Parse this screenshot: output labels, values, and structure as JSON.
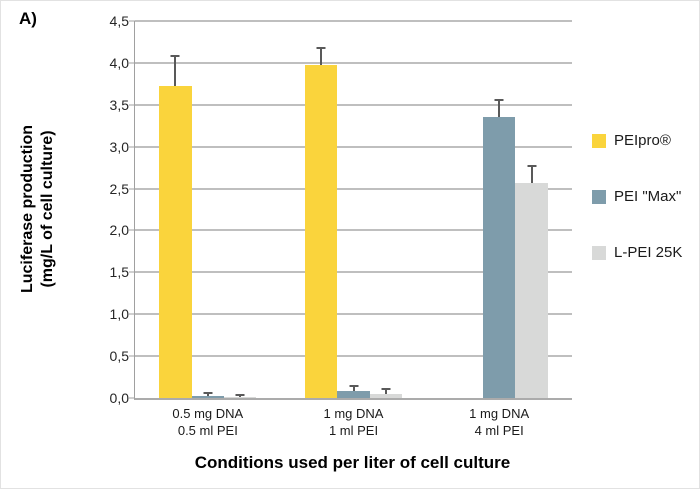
{
  "panel_label": "A)",
  "chart_data": {
    "type": "bar",
    "title": "",
    "xlabel": "Conditions used per liter of cell culture",
    "ylabel_lines": [
      "Luciferase production",
      "(mg/L of cell culture)"
    ],
    "ylim": [
      0,
      4.5
    ],
    "ytick_step": 0.5,
    "ytick_labels": [
      "0,0",
      "0,5",
      "1,0",
      "1,5",
      "2,0",
      "2,5",
      "3,0",
      "3,5",
      "4,0",
      "4,5"
    ],
    "grid": true,
    "legend_position": "right",
    "categories": [
      [
        "0.5 mg DNA",
        "0.5 ml PEI"
      ],
      [
        "1 mg DNA",
        "1 ml PEI"
      ],
      [
        "1 mg DNA",
        "4 ml PEI"
      ]
    ],
    "series": [
      {
        "name": "PEIpro®",
        "color": "#FAD43C",
        "values": [
          3.72,
          3.98,
          null
        ],
        "errors": [
          0.35,
          0.19,
          null
        ]
      },
      {
        "name": "PEI \"Max\"",
        "color": "#7E9CAB",
        "values": [
          0.02,
          0.08,
          3.35
        ],
        "errors": [
          0.03,
          0.05,
          0.2
        ]
      },
      {
        "name": "L-PEI 25K",
        "color": "#D8D9D8",
        "values": [
          0.01,
          0.05,
          2.57
        ],
        "errors": [
          0.02,
          0.05,
          0.19
        ]
      }
    ],
    "error_bar_color": "#595959"
  }
}
